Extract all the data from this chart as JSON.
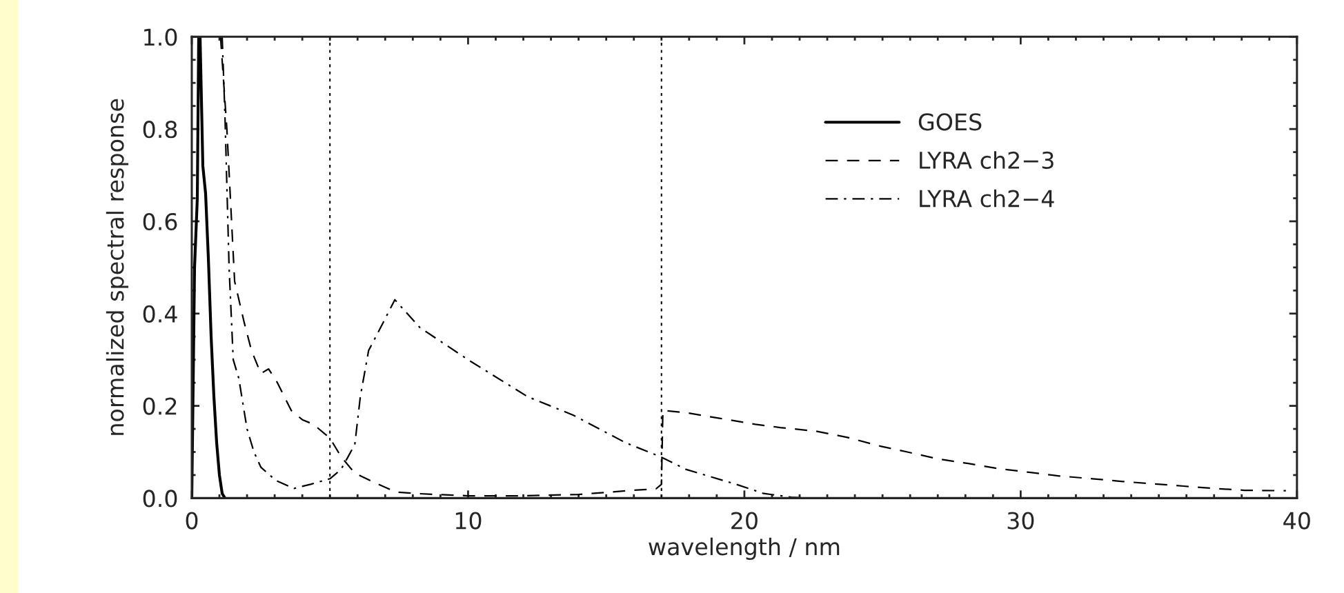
{
  "chart_data": {
    "type": "line",
    "xlabel": "wavelength / nm",
    "ylabel": "normalized spectral response",
    "xlim": [
      0,
      40
    ],
    "xticks": [
      0,
      10,
      20,
      30,
      40
    ],
    "ylim": [
      0,
      1.0
    ],
    "yticks": [
      {
        "value": 0,
        "label": "0.0"
      },
      {
        "value": 0.2,
        "label": "0.2"
      },
      {
        "value": 0.4,
        "label": "0.4"
      },
      {
        "value": 0.6,
        "label": "0.6"
      },
      {
        "value": 0.8,
        "label": "0.8"
      },
      {
        "value": 1.0,
        "label": "1.0"
      }
    ],
    "grid": false,
    "legend": "top right",
    "series": [
      {
        "name": "GOES",
        "color": "#000000",
        "line_style": "solid",
        "x": [
          0,
          0.1,
          0.2,
          0.25,
          0.3,
          0.4,
          0.5,
          0.6,
          0.7,
          0.8,
          0.9,
          1.0,
          1.1,
          1.2
        ],
        "values": [
          0,
          0.5,
          0.65,
          1.0,
          1.0,
          0.72,
          0.66,
          0.52,
          0.35,
          0.22,
          0.12,
          0.05,
          0.01,
          0
        ]
      },
      {
        "name": "LYRA ch2−3",
        "color": "#000000",
        "line_style": "dashed",
        "x": [
          1.04,
          1.27,
          1.55,
          1.9,
          2.16,
          2.5,
          2.78,
          3.1,
          3.6,
          4.0,
          4.4,
          5.0,
          5.4,
          5.9,
          6.75,
          7.4,
          8.1,
          10,
          12,
          14,
          16,
          16.8,
          17.0,
          17.05,
          17.9,
          19.1,
          20.4,
          21.3,
          22.6,
          23.7,
          24.9,
          25.9,
          27.0,
          28.1,
          29.2,
          30.3,
          31.4,
          32.6,
          33.7,
          34.8,
          35.9,
          37.0,
          38.1,
          39.6
        ],
        "values": [
          1.0,
          0.8,
          0.47,
          0.38,
          0.32,
          0.27,
          0.28,
          0.25,
          0.19,
          0.17,
          0.16,
          0.13,
          0.09,
          0.054,
          0.03,
          0.013,
          0.01,
          0.005,
          0.005,
          0.008,
          0.017,
          0.02,
          0.03,
          0.19,
          0.185,
          0.173,
          0.16,
          0.153,
          0.145,
          0.132,
          0.113,
          0.1,
          0.085,
          0.075,
          0.064,
          0.056,
          0.048,
          0.042,
          0.036,
          0.031,
          0.026,
          0.021,
          0.017,
          0.016
        ]
      },
      {
        "name": "LYRA ch2−4",
        "color": "#000000",
        "line_style": "dashdot",
        "x": [
          1.1,
          1.2,
          1.35,
          1.5,
          1.7,
          2.0,
          2.25,
          2.5,
          3.05,
          3.7,
          4.3,
          5.0,
          5.4,
          5.9,
          6.1,
          6.4,
          6.75,
          7.35,
          8.25,
          10.0,
          12.15,
          13.8,
          15.7,
          16.95,
          17.9,
          19.7,
          20.7,
          21.7,
          22.3
        ],
        "values": [
          1.0,
          0.83,
          0.5,
          0.3,
          0.26,
          0.15,
          0.1,
          0.067,
          0.038,
          0.021,
          0.03,
          0.042,
          0.062,
          0.116,
          0.22,
          0.32,
          0.36,
          0.43,
          0.37,
          0.3,
          0.22,
          0.18,
          0.12,
          0.09,
          0.062,
          0.03,
          0.01,
          0.002,
          0
        ]
      }
    ],
    "ref_lines": [
      {
        "axis": "x",
        "value": 5,
        "line_style": "dotted",
        "color": "#000000"
      },
      {
        "axis": "x",
        "value": 17,
        "line_style": "dotted",
        "color": "#000000"
      }
    ]
  }
}
